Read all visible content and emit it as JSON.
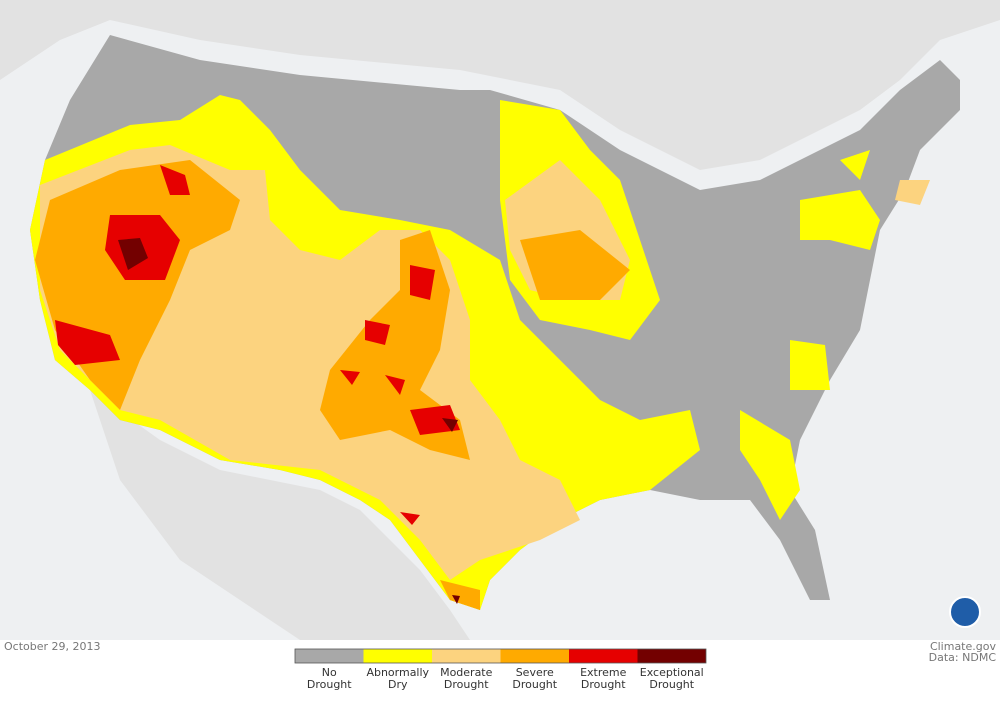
{
  "date": "October 29, 2013",
  "credit": {
    "source": "Climate.gov",
    "data": "Data: NDMC"
  },
  "legend": {
    "items": [
      {
        "label": [
          "No",
          "Drought"
        ],
        "color": "#a8a8a8"
      },
      {
        "label": [
          "Abnormally",
          "Dry"
        ],
        "color": "#ffff00"
      },
      {
        "label": [
          "Moderate",
          "Drought"
        ],
        "color": "#fcd37f"
      },
      {
        "label": [
          "Severe",
          "Drought"
        ],
        "color": "#ffaa00"
      },
      {
        "label": [
          "Extreme",
          "Drought"
        ],
        "color": "#e60000"
      },
      {
        "label": [
          "Exceptional",
          "Drought"
        ],
        "color": "#730000"
      }
    ]
  }
}
